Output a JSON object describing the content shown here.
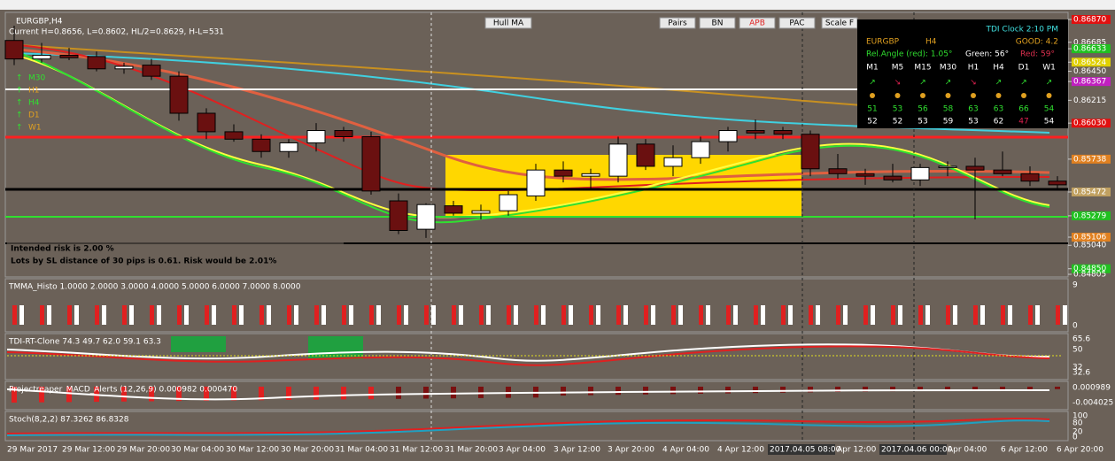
{
  "window": {
    "symbol_title": "EURGBP,H4",
    "info_line": "Current H=0.8656, L=0.8602, HL/2=0.8629, H-L=531",
    "buttons": [
      "Hull MA",
      "Pairs",
      "BN",
      "APB",
      "PAC",
      "Scale F"
    ],
    "timeframe_labels": [
      "M30",
      "H1",
      "H4",
      "D1",
      "W1"
    ],
    "risk_lines": [
      "Intended risk is 2.00 %",
      "Lots by SL distance of 30 pips is 0.61. Risk would be 2.01%"
    ]
  },
  "tdi_clock": {
    "title": "TDI Clock 2:10 PM",
    "pair": "EURGBP",
    "period": "H4",
    "quality": "GOOD: 4.2",
    "angle": "Rel.Angle (red): 1.05°",
    "green": "Green: 56°",
    "red": "Red: 59°",
    "timeframes": [
      "M1",
      "M5",
      "M15",
      "M30",
      "H1",
      "H4",
      "D1",
      "W1"
    ],
    "green_row": [
      "51",
      "53",
      "56",
      "58",
      "63",
      "63",
      "66",
      "54"
    ],
    "red_row": [
      "52",
      "52",
      "53",
      "59",
      "53",
      "62",
      "47",
      "54"
    ]
  },
  "price_axis": {
    "ylim": [
      0.84805,
      0.8687
    ],
    "yticks": [
      {
        "value": 0.8687,
        "label": "0.86870"
      },
      {
        "value": 0.86685,
        "label": "0.86685"
      },
      {
        "value": 0.86633,
        "label": "0.86633"
      },
      {
        "value": 0.86524,
        "label": "0.86524"
      },
      {
        "value": 0.8645,
        "label": "0.86450"
      },
      {
        "value": 0.86367,
        "label": "0.86367"
      },
      {
        "value": 0.86215,
        "label": "0.86215"
      },
      {
        "value": 0.8603,
        "label": "0.86030"
      },
      {
        "value": 0.85738,
        "label": "0.85738"
      },
      {
        "value": 0.85472,
        "label": "0.85472"
      },
      {
        "value": 0.85279,
        "label": "0.85279"
      },
      {
        "value": 0.85106,
        "label": "0.85106"
      },
      {
        "value": 0.8504,
        "label": "0.85040"
      },
      {
        "value": 0.8485,
        "label": "0.84850"
      },
      {
        "value": 0.84805,
        "label": "0.84805"
      }
    ],
    "label_colors": [
      "#e01010",
      null,
      "#20c020",
      "#e0d000",
      null,
      "#c020c0",
      null,
      "#e01010",
      "#e08020",
      "#c0a060",
      "#20c020",
      "#e08020",
      null,
      "#20c020",
      null
    ]
  },
  "candles": {
    "open": [
      0.867,
      0.8655,
      0.8658,
      0.8657,
      0.8647,
      0.865,
      0.8641,
      0.8611,
      0.8596,
      0.859,
      0.858,
      0.8587,
      0.8597,
      0.8592,
      0.854,
      0.8517,
      0.8536,
      0.853,
      0.8532,
      0.8544,
      0.8565,
      0.856,
      0.856,
      0.8586,
      0.8568,
      0.8575,
      0.8588,
      0.8597,
      0.8597,
      0.8594,
      0.8566,
      0.8562,
      0.856,
      0.8557,
      0.8567,
      0.8568,
      0.8565,
      0.8562,
      0.8556
    ],
    "high": [
      0.8682,
      0.8668,
      0.8664,
      0.8661,
      0.8652,
      0.8655,
      0.8645,
      0.8615,
      0.8602,
      0.8594,
      0.859,
      0.8603,
      0.86,
      0.8596,
      0.8546,
      0.8538,
      0.854,
      0.8537,
      0.8548,
      0.857,
      0.8572,
      0.8566,
      0.8592,
      0.859,
      0.8585,
      0.8592,
      0.86,
      0.8606,
      0.86,
      0.8597,
      0.8578,
      0.8566,
      0.857,
      0.857,
      0.8572,
      0.8575,
      0.858,
      0.8568,
      0.856
    ],
    "low": [
      0.865,
      0.8652,
      0.8654,
      0.8645,
      0.8643,
      0.8638,
      0.8605,
      0.859,
      0.8588,
      0.8575,
      0.8575,
      0.858,
      0.8588,
      0.8545,
      0.8513,
      0.851,
      0.8528,
      0.8525,
      0.8528,
      0.854,
      0.8555,
      0.855,
      0.8555,
      0.8565,
      0.856,
      0.857,
      0.858,
      0.859,
      0.859,
      0.856,
      0.8558,
      0.8553,
      0.8555,
      0.8552,
      0.856,
      0.8525,
      0.856,
      0.8552,
      0.855
    ],
    "close": [
      0.8655,
      0.8658,
      0.8656,
      0.8647,
      0.8649,
      0.8641,
      0.8611,
      0.8596,
      0.859,
      0.858,
      0.8587,
      0.8597,
      0.8592,
      0.8548,
      0.8516,
      0.8537,
      0.853,
      0.8532,
      0.8545,
      0.8565,
      0.856,
      0.8562,
      0.8586,
      0.8568,
      0.8575,
      0.8588,
      0.8597,
      0.8595,
      0.8594,
      0.8566,
      0.8562,
      0.856,
      0.8557,
      0.8567,
      0.8568,
      0.8565,
      0.8562,
      0.8556,
      0.8553
    ]
  },
  "panels": [
    {
      "title": "TMMA_Histo 1.0000 2.0000 3.0000 4.0000 5.0000 6.0000 7.0000 8.0000",
      "scale": [
        "9",
        "0"
      ]
    },
    {
      "title": "TDI-RT-Clone 74.3 49.7 62.0 59.1 63.3",
      "scale": [
        "65.6",
        "50",
        "32",
        "32.6"
      ]
    },
    {
      "title": "Projectreaper_MACD_Alerts (12,26,9) 0.000982 0.000470",
      "scale": [
        "0.000989",
        "-0.004025"
      ]
    },
    {
      "title": "Stoch(8,2,2) 87.3262 86.8328",
      "scale": [
        "100",
        "80",
        "20",
        "0"
      ]
    }
  ],
  "time_axis": [
    "29 Mar 2017",
    "29 Mar 12:00",
    "29 Mar 20:00",
    "30 Mar 04:00",
    "30 Mar 12:00",
    "30 Mar 20:00",
    "31 Mar 04:00",
    "31 Mar 12:00",
    "31 Mar 20:00",
    "3 Apr 04:00",
    "3 Apr 12:00",
    "3 Apr 20:00",
    "4 Apr 04:00",
    "4 Apr 12:00",
    "4 Apr 20:00",
    "2017.04.05 08:00",
    "Apr 12:00",
    "2017.04.06 00:00",
    "Apr 04:00",
    "6 Apr 12:00",
    "6 Apr 20:00"
  ]
}
